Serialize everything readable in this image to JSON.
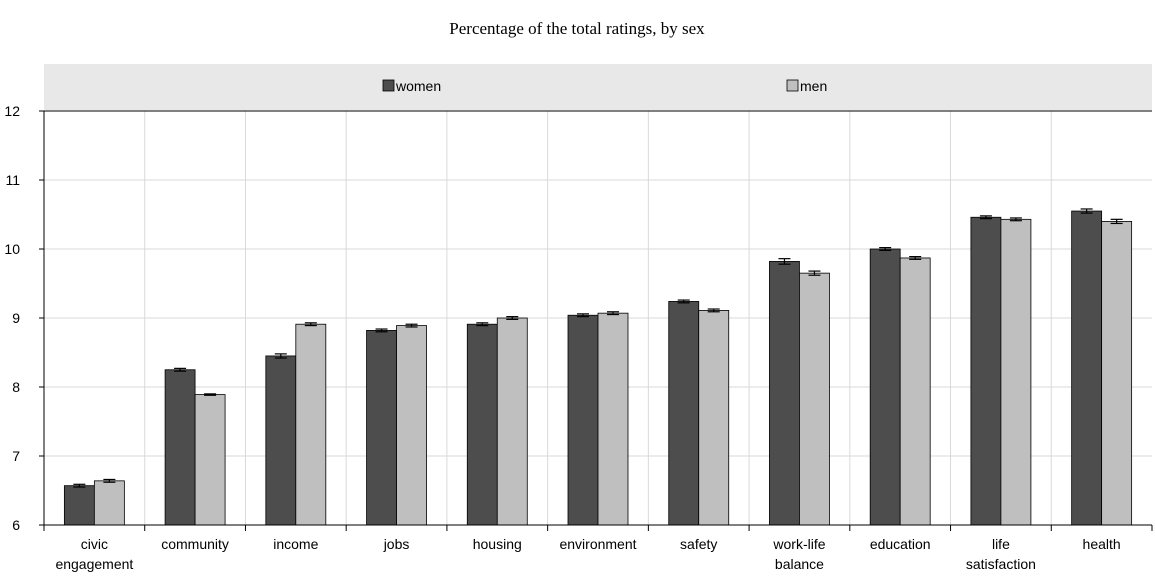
{
  "chart_data": {
    "type": "bar",
    "title": "Percentage of the total ratings, by sex",
    "xlabel": "",
    "ylabel": "",
    "ylim": [
      6,
      12
    ],
    "yticks": [
      6,
      7,
      8,
      9,
      10,
      11,
      12
    ],
    "categories": [
      [
        "civic",
        "engagement"
      ],
      [
        "community"
      ],
      [
        "income"
      ],
      [
        "jobs"
      ],
      [
        "housing"
      ],
      [
        "environment"
      ],
      [
        "safety"
      ],
      [
        "work-life",
        "balance"
      ],
      [
        "education"
      ],
      [
        "life",
        "satisfaction"
      ],
      [
        "health"
      ]
    ],
    "series": [
      {
        "name": "women",
        "color": "#4d4d4d",
        "values": [
          6.57,
          8.25,
          8.45,
          8.82,
          8.91,
          9.04,
          9.24,
          9.82,
          10.0,
          10.46,
          10.55
        ],
        "error": [
          0.02,
          0.02,
          0.03,
          0.02,
          0.02,
          0.02,
          0.02,
          0.04,
          0.02,
          0.02,
          0.03
        ]
      },
      {
        "name": "men",
        "color": "#bfbfbf",
        "values": [
          6.64,
          7.89,
          8.91,
          8.89,
          9.0,
          9.07,
          9.11,
          9.65,
          9.87,
          10.43,
          10.4
        ],
        "error": [
          0.02,
          0.01,
          0.02,
          0.02,
          0.02,
          0.02,
          0.02,
          0.03,
          0.02,
          0.02,
          0.03
        ]
      }
    ],
    "grid": true,
    "legend_position": "top"
  }
}
